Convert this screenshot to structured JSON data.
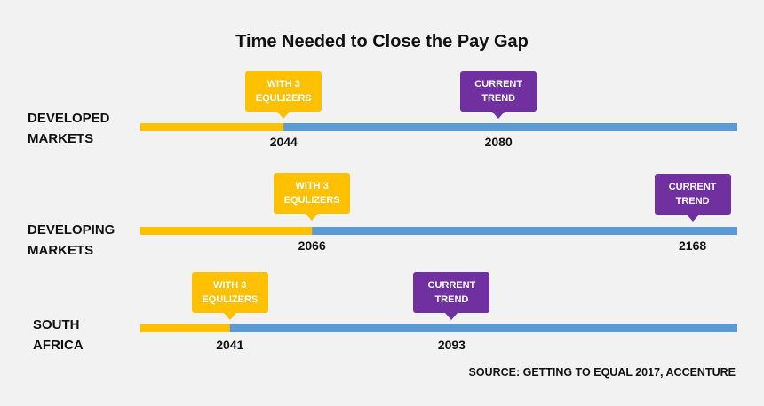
{
  "chart_data": {
    "type": "bar",
    "title": "Time Needed to Close the Pay Gap",
    "categories": [
      "DEVELOPED\nMARKETS",
      "DEVELOPING\nMARKETS",
      "SOUTH\nAFRICA"
    ],
    "series": [
      {
        "name": "WITH 3\nEQULIZERS",
        "values": [
          2044,
          2066,
          2041
        ]
      },
      {
        "name": "CURRENT\nTREND",
        "values": [
          2080,
          2168,
          2093
        ]
      }
    ],
    "colors": {
      "equalizers": "#ffc000",
      "current": "#5b9bd5",
      "equalizers_callout": "#ffc000",
      "current_callout": "#7030a0"
    },
    "source": "SOURCE: GETTING TO EQUAL 2017, ACCENTURE"
  }
}
